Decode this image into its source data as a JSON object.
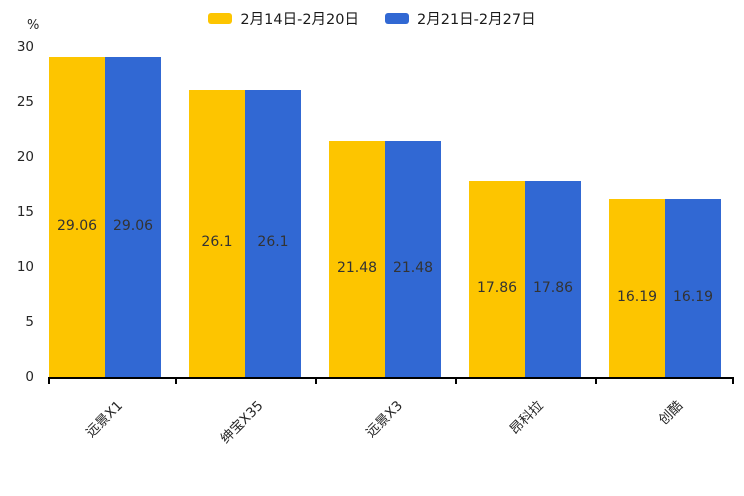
{
  "chart_data": {
    "type": "bar",
    "title": "",
    "ylabel": "%",
    "categories": [
      "远景X1",
      "绅宝X35",
      "远景X3",
      "昂科拉",
      "创酷"
    ],
    "series": [
      {
        "name": "2月14日-2月20日",
        "color": "#FDC500",
        "values": [
          29.06,
          26.1,
          21.48,
          17.86,
          16.19
        ]
      },
      {
        "name": "2月21日-2月27日",
        "color": "#3168D3",
        "values": [
          29.06,
          26.1,
          21.48,
          17.86,
          16.19
        ]
      }
    ],
    "value_labels": [
      [
        "29.06",
        "26.1",
        "21.48",
        "17.86",
        "16.19"
      ],
      [
        "29.06",
        "26.1",
        "21.48",
        "17.86",
        "16.19"
      ]
    ],
    "yticks": [
      0,
      5,
      10,
      15,
      20,
      25,
      30
    ],
    "ylim": [
      0,
      30
    ],
    "grid": false,
    "legend_position": "top",
    "bar_label_color": "#333333",
    "axis_color": "#000000"
  }
}
